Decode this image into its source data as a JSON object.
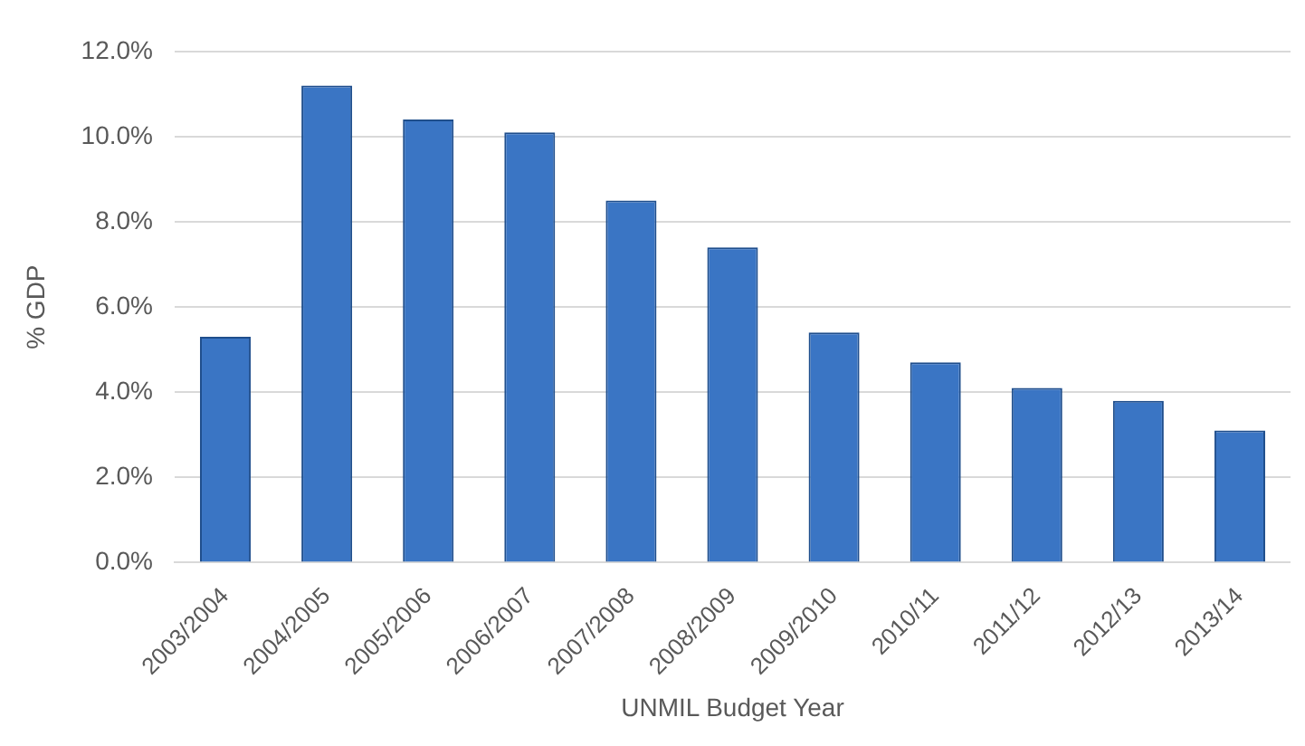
{
  "chart_data": {
    "type": "bar",
    "xlabel": "UNMIL Budget Year",
    "ylabel": "% GDP",
    "categories": [
      "2003/2004",
      "2004/2005",
      "2005/2006",
      "2006/2007",
      "2007/2008",
      "2008/2009",
      "2009/2010",
      "2010/11",
      "2011/12",
      "2012/13",
      "2013/14"
    ],
    "values": [
      5.3,
      11.2,
      10.4,
      10.1,
      8.5,
      7.4,
      5.4,
      4.7,
      4.1,
      3.8,
      3.1
    ],
    "color": "#3a75c4",
    "ylim": [
      0,
      12
    ],
    "yticks": [
      {
        "value": 0,
        "label": "0.0%"
      },
      {
        "value": 2,
        "label": "2.0%"
      },
      {
        "value": 4,
        "label": "4.0%"
      },
      {
        "value": 6,
        "label": "6.0%"
      },
      {
        "value": 8,
        "label": "8.0%"
      },
      {
        "value": 10,
        "label": "10.0%"
      },
      {
        "value": 12,
        "label": "12.0%"
      }
    ],
    "grid": "y",
    "legend": false
  }
}
